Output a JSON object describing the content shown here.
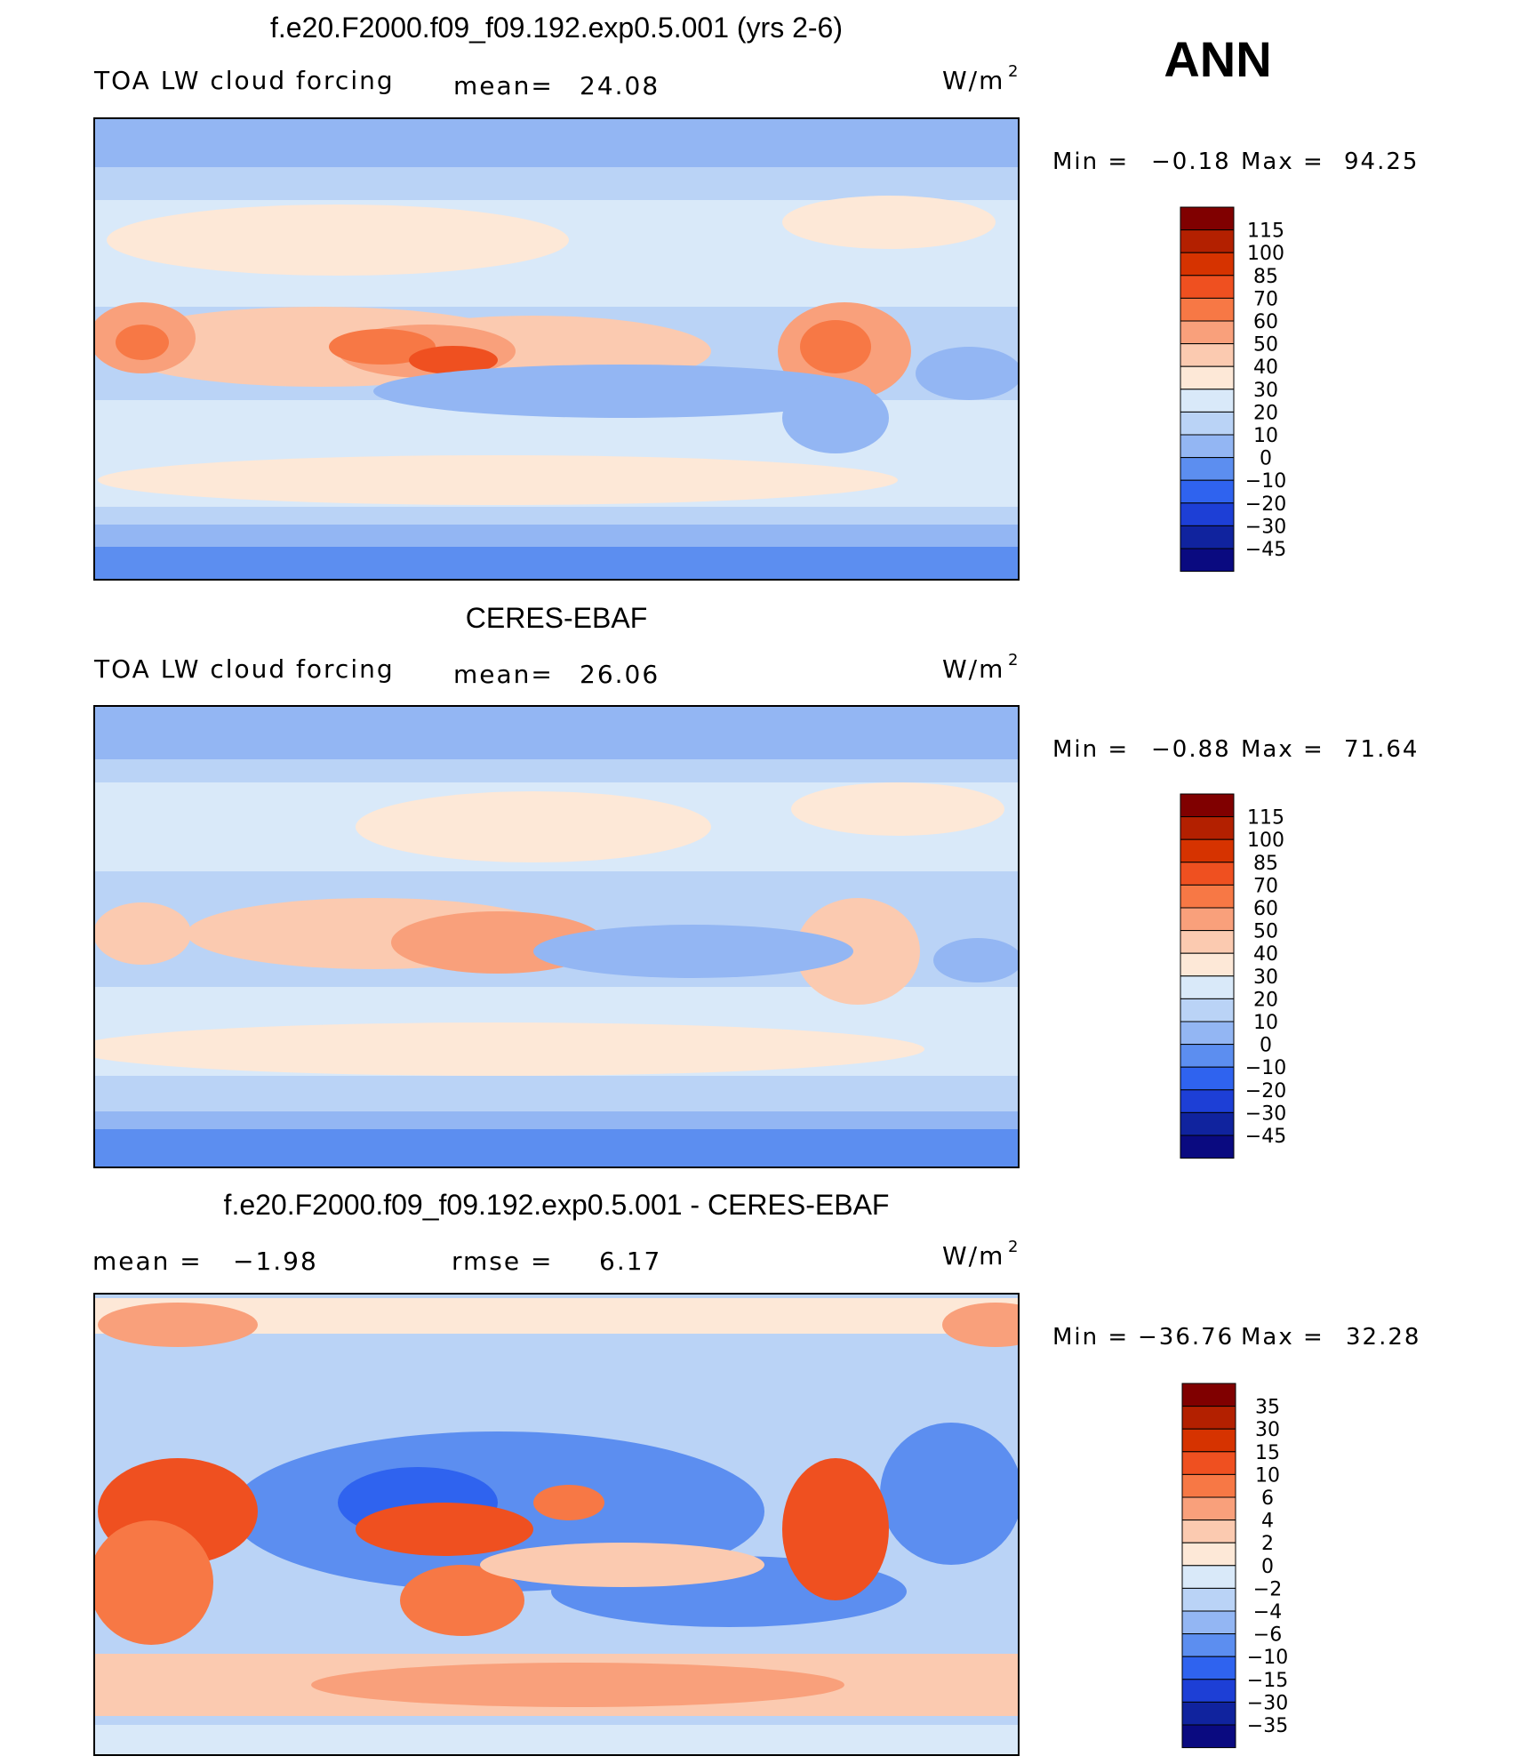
{
  "season_label": "ANN",
  "panels": [
    {
      "title": "f.e20.F2000.f09_f09.192.exp0.5.001 (yrs 2-6)",
      "variable": "TOA LW cloud forcing",
      "stat1_label": "mean=",
      "stat1_value": "24.08",
      "stat2_label": "",
      "stat2_value": "",
      "units": "W/m",
      "units_exp": "2",
      "min_label": "Min =",
      "min_value": "−0.18",
      "max_label": "Max =",
      "max_value": "94.25",
      "colorbar_labels": [
        "115",
        "100",
        "85",
        "70",
        "60",
        "50",
        "40",
        "30",
        "20",
        "10",
        "0",
        "−10",
        "−20",
        "−30",
        "−45"
      ]
    },
    {
      "title": "CERES-EBAF",
      "variable": "TOA LW cloud forcing",
      "stat1_label": "mean=",
      "stat1_value": "26.06",
      "stat2_label": "",
      "stat2_value": "",
      "units": "W/m",
      "units_exp": "2",
      "min_label": "Min =",
      "min_value": "−0.88",
      "max_label": "Max =",
      "max_value": "71.64",
      "colorbar_labels": [
        "115",
        "100",
        "85",
        "70",
        "60",
        "50",
        "40",
        "30",
        "20",
        "10",
        "0",
        "−10",
        "−20",
        "−30",
        "−45"
      ]
    },
    {
      "title": "f.e20.F2000.f09_f09.192.exp0.5.001 - CERES-EBAF",
      "variable": "",
      "stat1_label": "mean =",
      "stat1_value": "−1.98",
      "stat2_label": "rmse =",
      "stat2_value": "6.17",
      "units": "W/m",
      "units_exp": "2",
      "min_label": "Min =",
      "min_value": "−36.76",
      "max_label": "Max =",
      "max_value": "32.28",
      "colorbar_labels": [
        "35",
        "30",
        "15",
        "10",
        "6",
        "4",
        "2",
        "0",
        "−2",
        "−4",
        "−6",
        "−10",
        "−15",
        "−30",
        "−35"
      ]
    }
  ],
  "colors": {
    "colorbar_scale": [
      "#800000",
      "#b32000",
      "#d63300",
      "#ef5020",
      "#f77845",
      "#f9a07b",
      "#fbcab0",
      "#fde8d7",
      "#d9e9f9",
      "#bad3f6",
      "#93b6f3",
      "#5c8ef0",
      "#2f63ef",
      "#1d3fd6",
      "#10239e",
      "#0a0a80"
    ],
    "map_ocean_base": "#cfe3f8",
    "coastline": "#000000"
  }
}
